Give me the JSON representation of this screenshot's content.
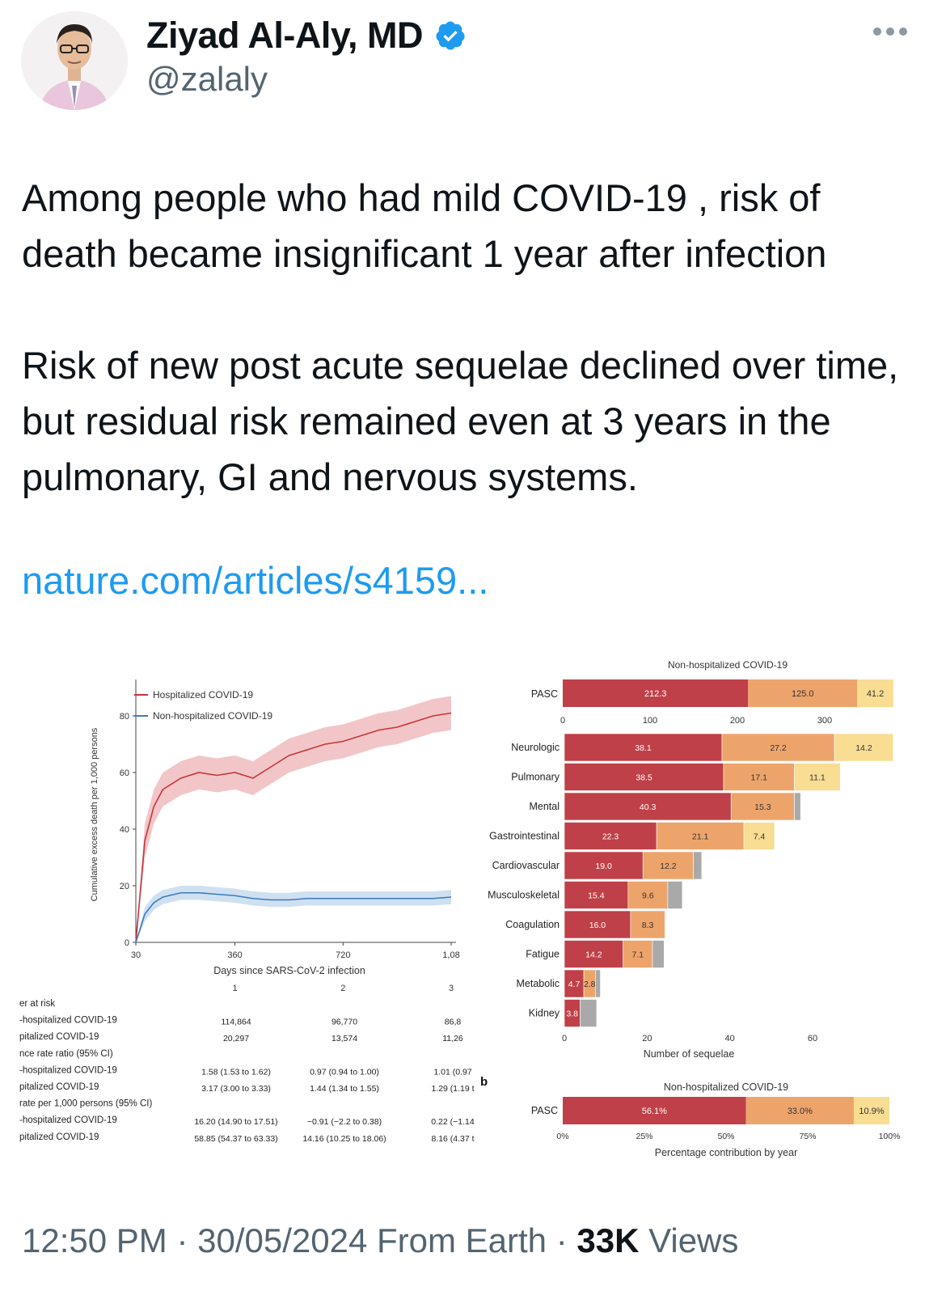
{
  "author": {
    "name": "Ziyad Al-Aly, MD",
    "handle": "@zalaly",
    "verified_color": "#1d9bf0"
  },
  "tweet": {
    "paragraph1": "Among people who had mild COVID-19 , risk of death became insignificant 1 year after infection",
    "paragraph2": "Risk of new post acute sequelae declined over time, but residual risk remained even at 3 years in the pulmonary, GI and nervous systems.",
    "link": "nature.com/articles/s4159..."
  },
  "meta": {
    "time": "12:50 PM",
    "date": "30/05/2024",
    "source": "From Earth",
    "views_count": "33K",
    "views_label": "Views"
  },
  "figure": {
    "left_chart": {
      "ylabel": "Cumulative excess death per 1,000 persons",
      "xlabel": "Days since SARS-CoV-2 infection",
      "yticks": [
        "0",
        "20",
        "40",
        "60",
        "80"
      ],
      "xticks": [
        "30",
        "360",
        "720",
        "1,08"
      ],
      "year_marks": [
        "1",
        "2",
        "3"
      ],
      "legend": [
        "Hospitalized COVID-19",
        "Non-hospitalized COVID-19"
      ],
      "colors": {
        "hospitalized": "#c8343a",
        "non_hospitalized": "#3b7bbf"
      }
    },
    "table": {
      "rows": [
        {
          "label": "er at risk",
          "values": [
            "",
            "",
            ""
          ]
        },
        {
          "label": "-hospitalized COVID-19",
          "values": [
            "114,864",
            "96,770",
            "86,8"
          ]
        },
        {
          "label": "pitalized COVID-19",
          "values": [
            "20,297",
            "13,574",
            "11,26"
          ]
        },
        {
          "label": "nce rate ratio (95% CI)",
          "values": [
            "",
            "",
            ""
          ]
        },
        {
          "label": "-hospitalized COVID-19",
          "values": [
            "1.58 (1.53 to 1.62)",
            "0.97 (0.94 to 1.00)",
            "1.01 (0.97"
          ]
        },
        {
          "label": "pitalized COVID-19",
          "values": [
            "3.17 (3.00 to 3.33)",
            "1.44 (1.34 to 1.55)",
            "1.29 (1.19 t"
          ]
        },
        {
          "label": "rate per 1,000 persons (95% CI)",
          "values": [
            "",
            "",
            ""
          ]
        },
        {
          "label": "-hospitalized COVID-19",
          "values": [
            "16.20 (14.90 to 17.51)",
            "−0.91 (−2.2 to 0.38)",
            "0.22 (−1.14"
          ]
        },
        {
          "label": "pitalized COVID-19",
          "values": [
            "58.85 (54.37 to 63.33)",
            "14.16 (10.25 to 18.06)",
            "8.16 (4.37 t"
          ]
        }
      ]
    },
    "top_right": {
      "title": "Non-hospitalized COVID-19",
      "category": "PASC",
      "values": [
        212.3,
        125.0,
        41.2
      ],
      "xticks": [
        "0",
        "100",
        "200",
        "300"
      ]
    },
    "panel_b_label": "b",
    "bottom_panel": {
      "title": "Non-hospitalized COVID-19",
      "category": "PASC",
      "values": [
        "56.1%",
        "33.0%",
        "10.9%"
      ],
      "xticks": [
        "0%",
        "25%",
        "50%",
        "75%",
        "100%"
      ],
      "xlabel": "Percentage contribution by year"
    },
    "colors": {
      "year1": "#bf4048",
      "year2": "#eda46b",
      "year3": "#f8dd92",
      "other": "#a9a9a9"
    }
  },
  "chart_data": [
    {
      "type": "line",
      "x": [
        30,
        60,
        90,
        120,
        180,
        240,
        300,
        360,
        420,
        480,
        540,
        600,
        660,
        720,
        780,
        840,
        900,
        960,
        1020,
        1080
      ],
      "xlabel": "Days since SARS-CoV-2 infection",
      "ylabel": "Cumulative excess death per 1,000 persons",
      "ylim": [
        0,
        90
      ],
      "series": [
        {
          "name": "Hospitalized COVID-19",
          "values": [
            0,
            36,
            48,
            54,
            58,
            60,
            59,
            60,
            58,
            62,
            66,
            68,
            70,
            71,
            73,
            75,
            76,
            78,
            80,
            81
          ]
        },
        {
          "name": "Non-hospitalized COVID-19",
          "values": [
            0,
            10,
            14,
            16,
            17.5,
            17.5,
            17,
            16.5,
            15.5,
            15,
            15,
            15.5,
            15.5,
            15.5,
            15.5,
            15.5,
            15.5,
            15.5,
            15.5,
            16
          ]
        }
      ]
    },
    {
      "type": "bar",
      "title": "Non-hospitalized COVID-19",
      "categories": [
        "PASC"
      ],
      "xticks": [
        "0",
        "100",
        "200",
        "300"
      ],
      "series": [
        {
          "values": [
            212.3
          ]
        },
        {
          "values": [
            125.0
          ]
        },
        {
          "values": [
            41.2
          ]
        }
      ]
    },
    {
      "type": "bar",
      "xlabel": "Number of sequelae",
      "categories": [
        "Neurologic",
        "Pulmonary",
        "Mental",
        "Gastrointestinal",
        "Cardiovascular",
        "Musculoskeletal",
        "Coagulation",
        "Fatigue",
        "Metabolic",
        "Kidney"
      ],
      "xlim": [
        0,
        80
      ],
      "xticks": [
        "0",
        "20",
        "40",
        "60"
      ],
      "series": [
        {
          "values": [
            38.1,
            38.5,
            40.3,
            22.3,
            19.0,
            15.4,
            16.0,
            14.2,
            4.7,
            3.8
          ]
        },
        {
          "values": [
            27.2,
            17.1,
            15.3,
            21.1,
            12.2,
            9.6,
            8.3,
            7.1,
            2.8,
            0
          ]
        },
        {
          "values": [
            14.2,
            11.1,
            1.5,
            7.4,
            2.0,
            3.5,
            0,
            2.8,
            1.2,
            4.0
          ]
        }
      ]
    },
    {
      "type": "bar",
      "title": "Non-hospitalized COVID-19",
      "xlabel": "Percentage contribution by year",
      "categories": [
        "PASC"
      ],
      "xticks": [
        "0%",
        "25%",
        "50%",
        "75%",
        "100%"
      ],
      "series": [
        {
          "values": [
            56.1
          ]
        },
        {
          "values": [
            33.0
          ]
        },
        {
          "values": [
            10.9
          ]
        }
      ]
    }
  ]
}
